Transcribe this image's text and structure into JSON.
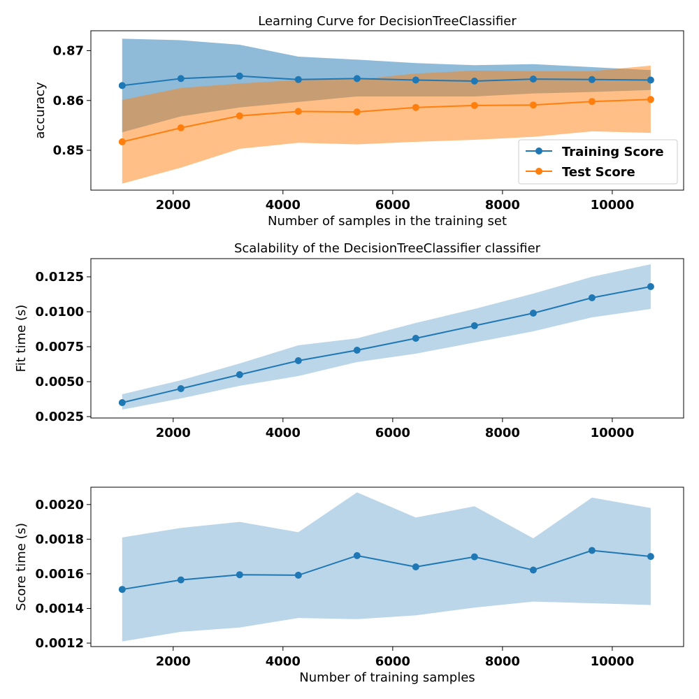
{
  "chart_data": [
    {
      "type": "line",
      "title": "Learning Curve for DecisionTreeClassifier",
      "xlabel": "Number of samples in the training set",
      "ylabel": "accuracy",
      "xlim": [
        500,
        11300
      ],
      "ylim": [
        0.842,
        0.874
      ],
      "xticks": [
        {
          "value": 2000,
          "label": "2000"
        },
        {
          "value": 4000,
          "label": "4000"
        },
        {
          "value": 6000,
          "label": "6000"
        },
        {
          "value": 8000,
          "label": "8000"
        },
        {
          "value": 10000,
          "label": "10000"
        }
      ],
      "yticks": [
        {
          "value": 0.85,
          "label": "0.85"
        },
        {
          "value": 0.86,
          "label": "0.86"
        },
        {
          "value": 0.87,
          "label": "0.87"
        }
      ],
      "grid": false,
      "legend": "lower-right",
      "x": [
        1070,
        2140,
        3210,
        4280,
        5350,
        6420,
        7490,
        8560,
        9630,
        10700
      ],
      "series": [
        {
          "name": "Training Score",
          "color": "#1f77b4",
          "values": [
            0.863,
            0.8644,
            0.8649,
            0.8642,
            0.8644,
            0.8641,
            0.8639,
            0.8643,
            0.8642,
            0.8641
          ],
          "lower": [
            0.8536,
            0.8568,
            0.8586,
            0.8597,
            0.8608,
            0.8608,
            0.8608,
            0.8614,
            0.8617,
            0.8621
          ],
          "upper": [
            0.8724,
            0.8721,
            0.8712,
            0.8688,
            0.8682,
            0.8675,
            0.8671,
            0.8673,
            0.8667,
            0.8661
          ]
        },
        {
          "name": "Test Score",
          "color": "#ff7f0e",
          "values": [
            0.8517,
            0.8545,
            0.8569,
            0.8578,
            0.8577,
            0.8586,
            0.859,
            0.8591,
            0.8598,
            0.8602
          ],
          "lower": [
            0.8433,
            0.8465,
            0.8503,
            0.8515,
            0.8512,
            0.8517,
            0.8521,
            0.8527,
            0.8538,
            0.8535
          ],
          "upper": [
            0.8601,
            0.8625,
            0.8634,
            0.8641,
            0.8642,
            0.8654,
            0.866,
            0.8659,
            0.8659,
            0.867
          ]
        }
      ]
    },
    {
      "type": "line",
      "title": "Scalability of the DecisionTreeClassifier classifier",
      "xlabel": "",
      "ylabel": "Fit time (s)",
      "xlim": [
        500,
        11300
      ],
      "ylim": [
        0.0024,
        0.0138
      ],
      "xticks": [
        {
          "value": 2000,
          "label": "2000"
        },
        {
          "value": 4000,
          "label": "4000"
        },
        {
          "value": 6000,
          "label": "6000"
        },
        {
          "value": 8000,
          "label": "8000"
        },
        {
          "value": 10000,
          "label": "10000"
        }
      ],
      "yticks": [
        {
          "value": 0.0025,
          "label": "0.0025"
        },
        {
          "value": 0.005,
          "label": "0.0050"
        },
        {
          "value": 0.0075,
          "label": "0.0075"
        },
        {
          "value": 0.01,
          "label": "0.0100"
        },
        {
          "value": 0.0125,
          "label": "0.0125"
        }
      ],
      "grid": false,
      "x": [
        1070,
        2140,
        3210,
        4280,
        5350,
        6420,
        7490,
        8560,
        9630,
        10700
      ],
      "series": [
        {
          "color": "#1f77b4",
          "values": [
            0.0035,
            0.0045,
            0.0055,
            0.0065,
            0.00725,
            0.0081,
            0.009,
            0.0099,
            0.011,
            0.0118
          ],
          "lower": [
            0.003,
            0.0038,
            0.0047,
            0.0054,
            0.0064,
            0.007,
            0.0078,
            0.0086,
            0.0096,
            0.0102
          ],
          "upper": [
            0.0041,
            0.0051,
            0.0063,
            0.0076,
            0.0081,
            0.0092,
            0.0102,
            0.0113,
            0.0125,
            0.0134
          ]
        }
      ]
    },
    {
      "type": "line",
      "title": "",
      "xlabel": "Number of training samples",
      "ylabel": "Score time (s)",
      "xlim": [
        500,
        11300
      ],
      "ylim": [
        0.00118,
        0.0021
      ],
      "xticks": [
        {
          "value": 2000,
          "label": "2000"
        },
        {
          "value": 4000,
          "label": "4000"
        },
        {
          "value": 6000,
          "label": "6000"
        },
        {
          "value": 8000,
          "label": "8000"
        },
        {
          "value": 10000,
          "label": "10000"
        }
      ],
      "yticks": [
        {
          "value": 0.0012,
          "label": "0.0012"
        },
        {
          "value": 0.0014,
          "label": "0.0014"
        },
        {
          "value": 0.0016,
          "label": "0.0016"
        },
        {
          "value": 0.0018,
          "label": "0.0018"
        },
        {
          "value": 0.002,
          "label": "0.0020"
        }
      ],
      "grid": false,
      "x": [
        1070,
        2140,
        3210,
        4280,
        5350,
        6420,
        7490,
        8560,
        9630,
        10700
      ],
      "series": [
        {
          "color": "#1f77b4",
          "values": [
            0.00151,
            0.001565,
            0.001595,
            0.001592,
            0.001705,
            0.00164,
            0.001698,
            0.001622,
            0.001735,
            0.0017
          ],
          "lower": [
            0.00121,
            0.001265,
            0.00129,
            0.001345,
            0.001338,
            0.00136,
            0.001405,
            0.00144,
            0.00143,
            0.00142
          ],
          "upper": [
            0.00181,
            0.001865,
            0.0019,
            0.00184,
            0.00207,
            0.001925,
            0.00199,
            0.001805,
            0.00204,
            0.00198
          ]
        }
      ]
    }
  ]
}
